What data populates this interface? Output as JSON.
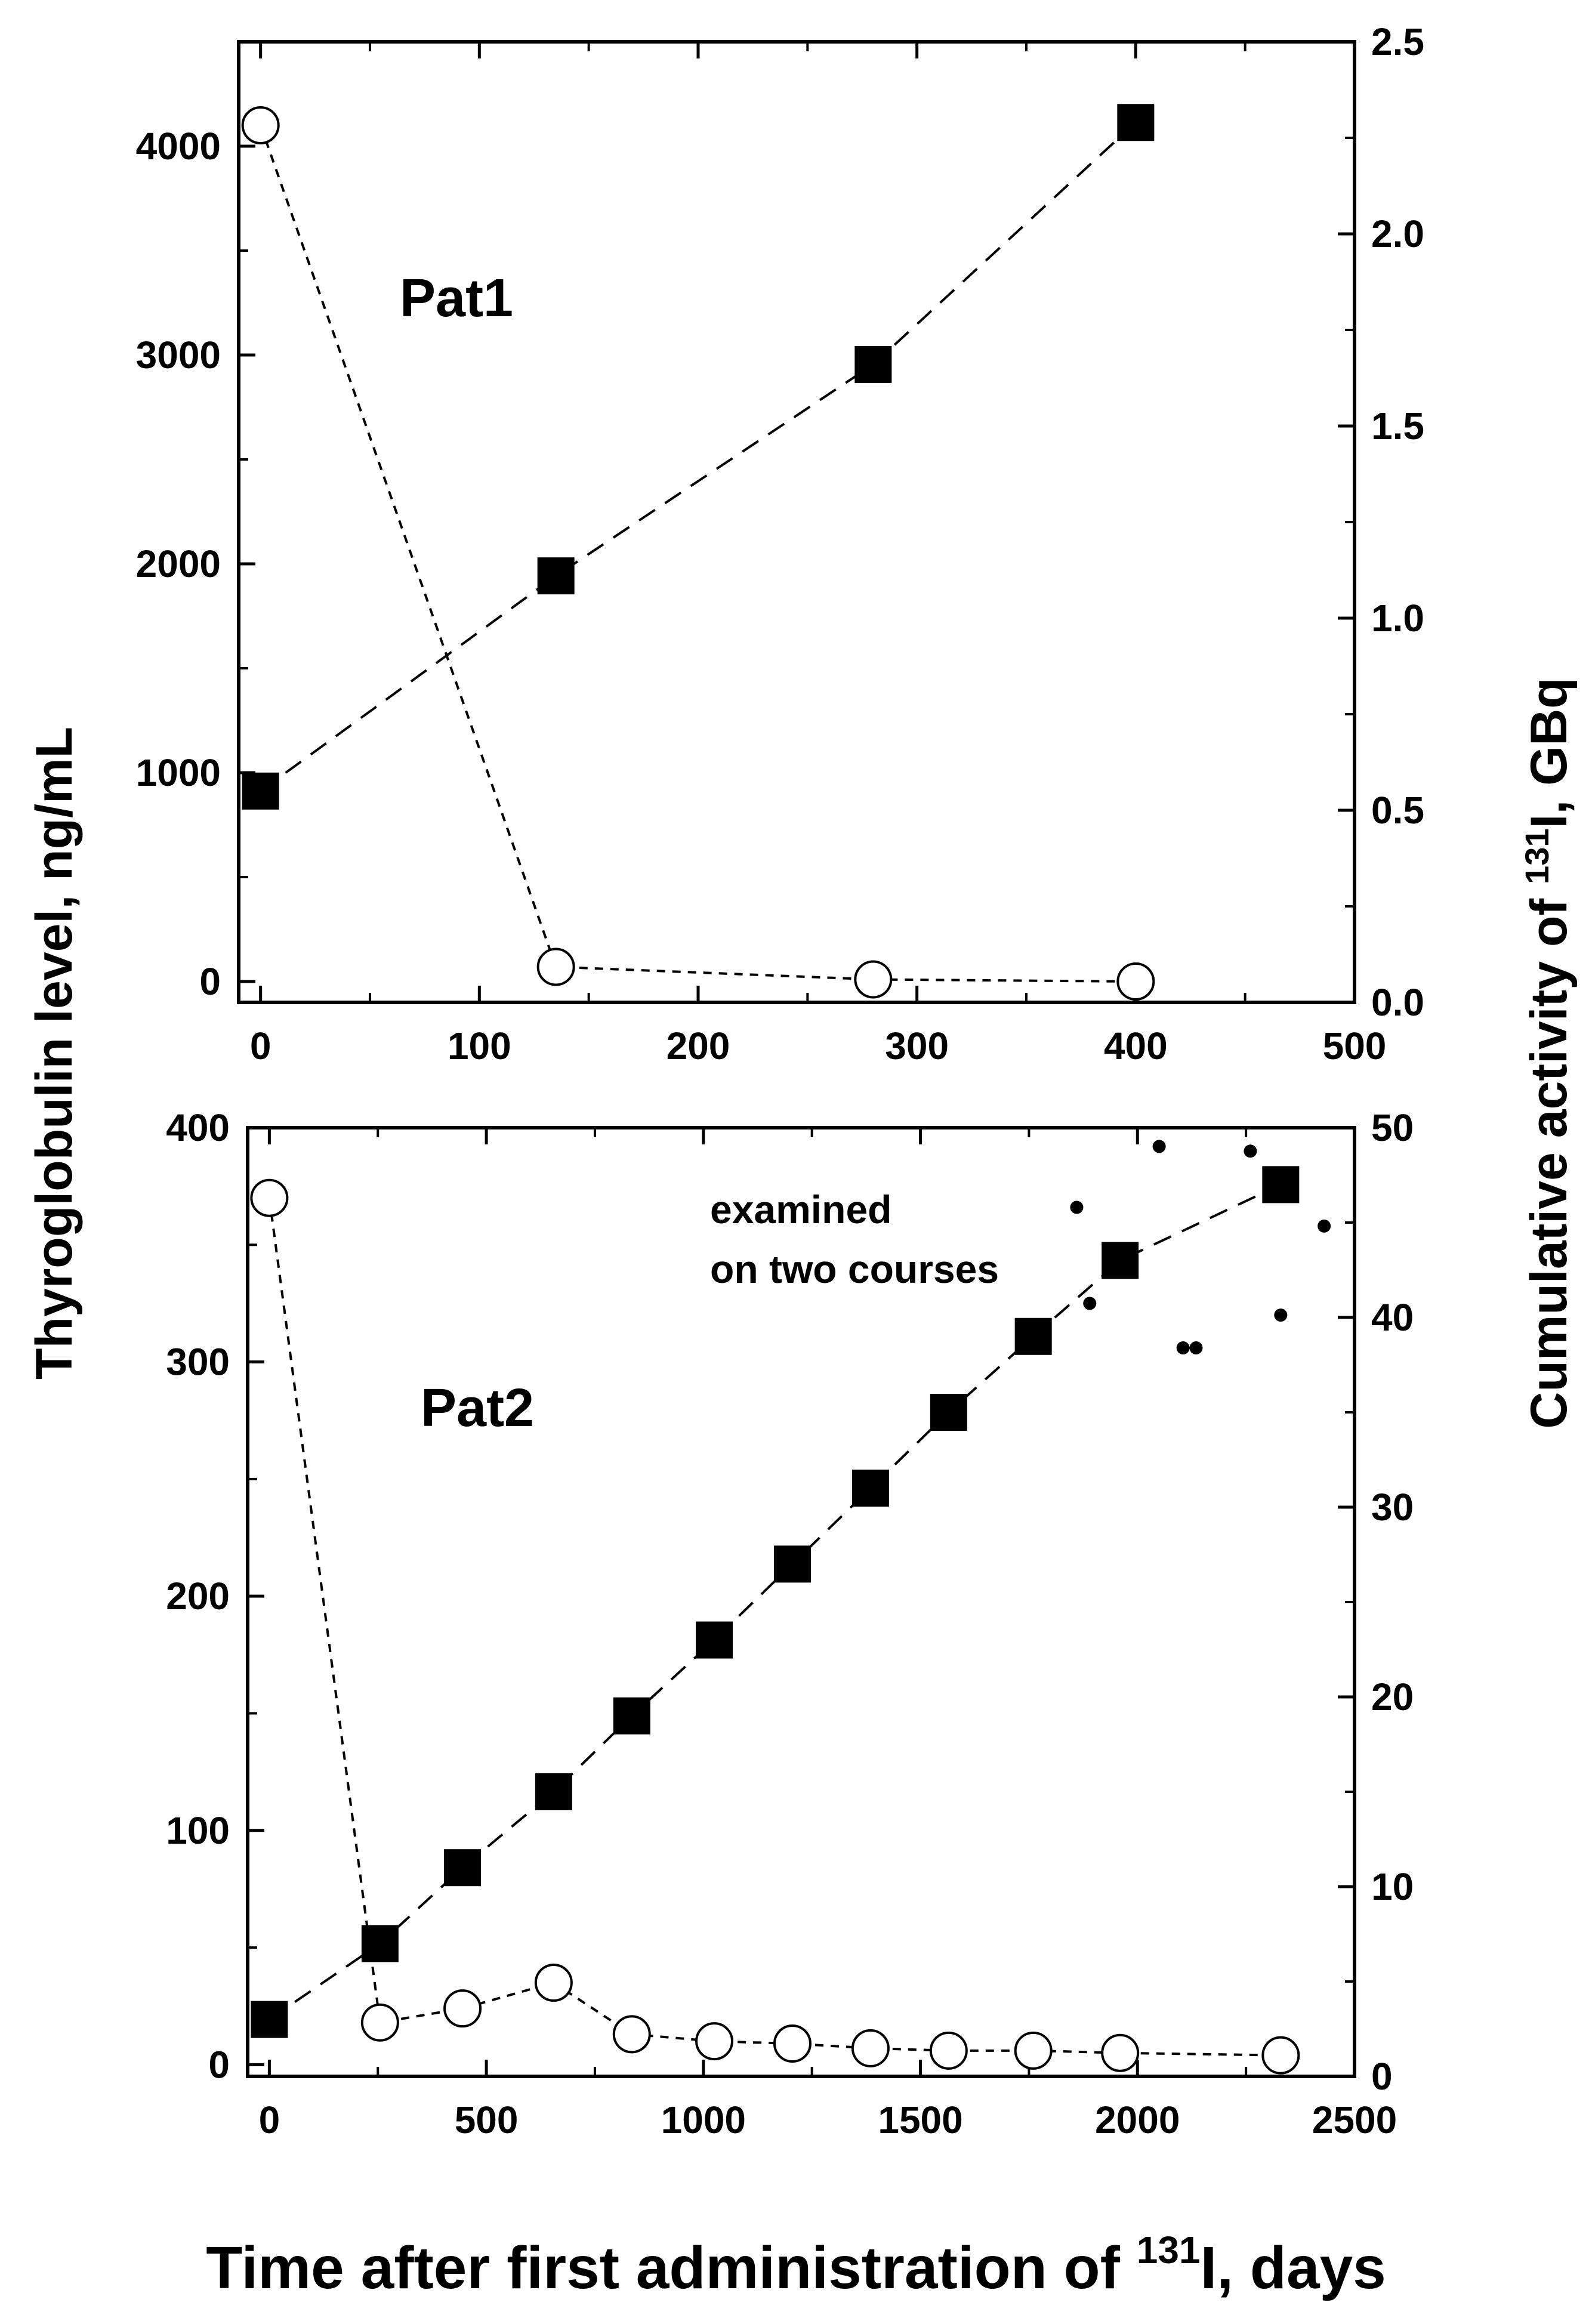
{
  "figure": {
    "y_axis_title_left": "Thyroglobulin level, ng/mL",
    "y_axis_title_right": {
      "prefix": "Cumulative activity of ",
      "superscript": "131",
      "suffix": "I, GBq"
    },
    "x_axis_title": {
      "prefix": "Time after first administration of ",
      "superscript": "131",
      "suffix": "I, days"
    }
  },
  "chart_data": [
    {
      "type": "scatter",
      "panel_label": "Pat1",
      "xlim": [
        -10,
        500
      ],
      "x_ticks": [
        0,
        100,
        200,
        300,
        400,
        500
      ],
      "ylim_left": [
        -100,
        4500
      ],
      "y_left_ticks": [
        0,
        1000,
        2000,
        3000,
        4000
      ],
      "ylim_right": [
        0,
        2.5
      ],
      "y_right_ticks": [
        "0.0",
        "0.5",
        "1.0",
        "1.5",
        "2.0",
        "2.5"
      ],
      "series": [
        {
          "name": "Thyroglobulin level",
          "marker": "open-circle",
          "axis": "left",
          "points": [
            [
              0,
              4100
            ],
            [
              135,
              70
            ],
            [
              280,
              10
            ],
            [
              400,
              0
            ]
          ]
        },
        {
          "name": "Cumulative activity",
          "marker": "filled-square",
          "axis": "right",
          "points": [
            [
              0,
              0.55
            ],
            [
              135,
              1.11
            ],
            [
              280,
              1.66
            ],
            [
              400,
              2.29
            ]
          ]
        }
      ]
    },
    {
      "type": "scatter",
      "panel_label": "Pat2",
      "annotation": [
        "examined",
        "on two courses"
      ],
      "xlim": [
        -50,
        2500
      ],
      "x_ticks": [
        0,
        500,
        1000,
        1500,
        2000,
        2500
      ],
      "ylim_left": [
        -5,
        400
      ],
      "y_left_ticks": [
        0,
        100,
        200,
        300,
        400
      ],
      "ylim_right": [
        0,
        50
      ],
      "y_right_ticks": [
        0,
        10,
        20,
        30,
        40,
        50
      ],
      "series": [
        {
          "name": "Thyroglobulin level",
          "marker": "open-circle",
          "axis": "left",
          "points": [
            [
              0,
              370
            ],
            [
              255,
              18
            ],
            [
              445,
              24
            ],
            [
              655,
              35
            ],
            [
              835,
              13
            ],
            [
              1025,
              10
            ],
            [
              1205,
              9
            ],
            [
              1385,
              7
            ],
            [
              1565,
              6
            ],
            [
              1760,
              6
            ],
            [
              1960,
              5
            ],
            [
              2330,
              4
            ]
          ]
        },
        {
          "name": "Cumulative activity",
          "marker": "filled-square",
          "axis": "right",
          "points": [
            [
              0,
              3
            ],
            [
              255,
              7
            ],
            [
              445,
              11
            ],
            [
              655,
              15
            ],
            [
              835,
              19
            ],
            [
              1025,
              23
            ],
            [
              1205,
              27
            ],
            [
              1385,
              31
            ],
            [
              1565,
              35
            ],
            [
              1760,
              39
            ],
            [
              1960,
              43
            ],
            [
              2330,
              47
            ]
          ]
        },
        {
          "name": "examined on two courses",
          "marker": "small-dot",
          "axis": "left",
          "points": [
            [
              1860,
              366
            ],
            [
              1890,
              325
            ],
            [
              2050,
              392
            ],
            [
              2105,
              306
            ],
            [
              2135,
              306
            ],
            [
              2260,
              390
            ],
            [
              2330,
              320
            ],
            [
              2430,
              358
            ]
          ]
        }
      ]
    }
  ]
}
